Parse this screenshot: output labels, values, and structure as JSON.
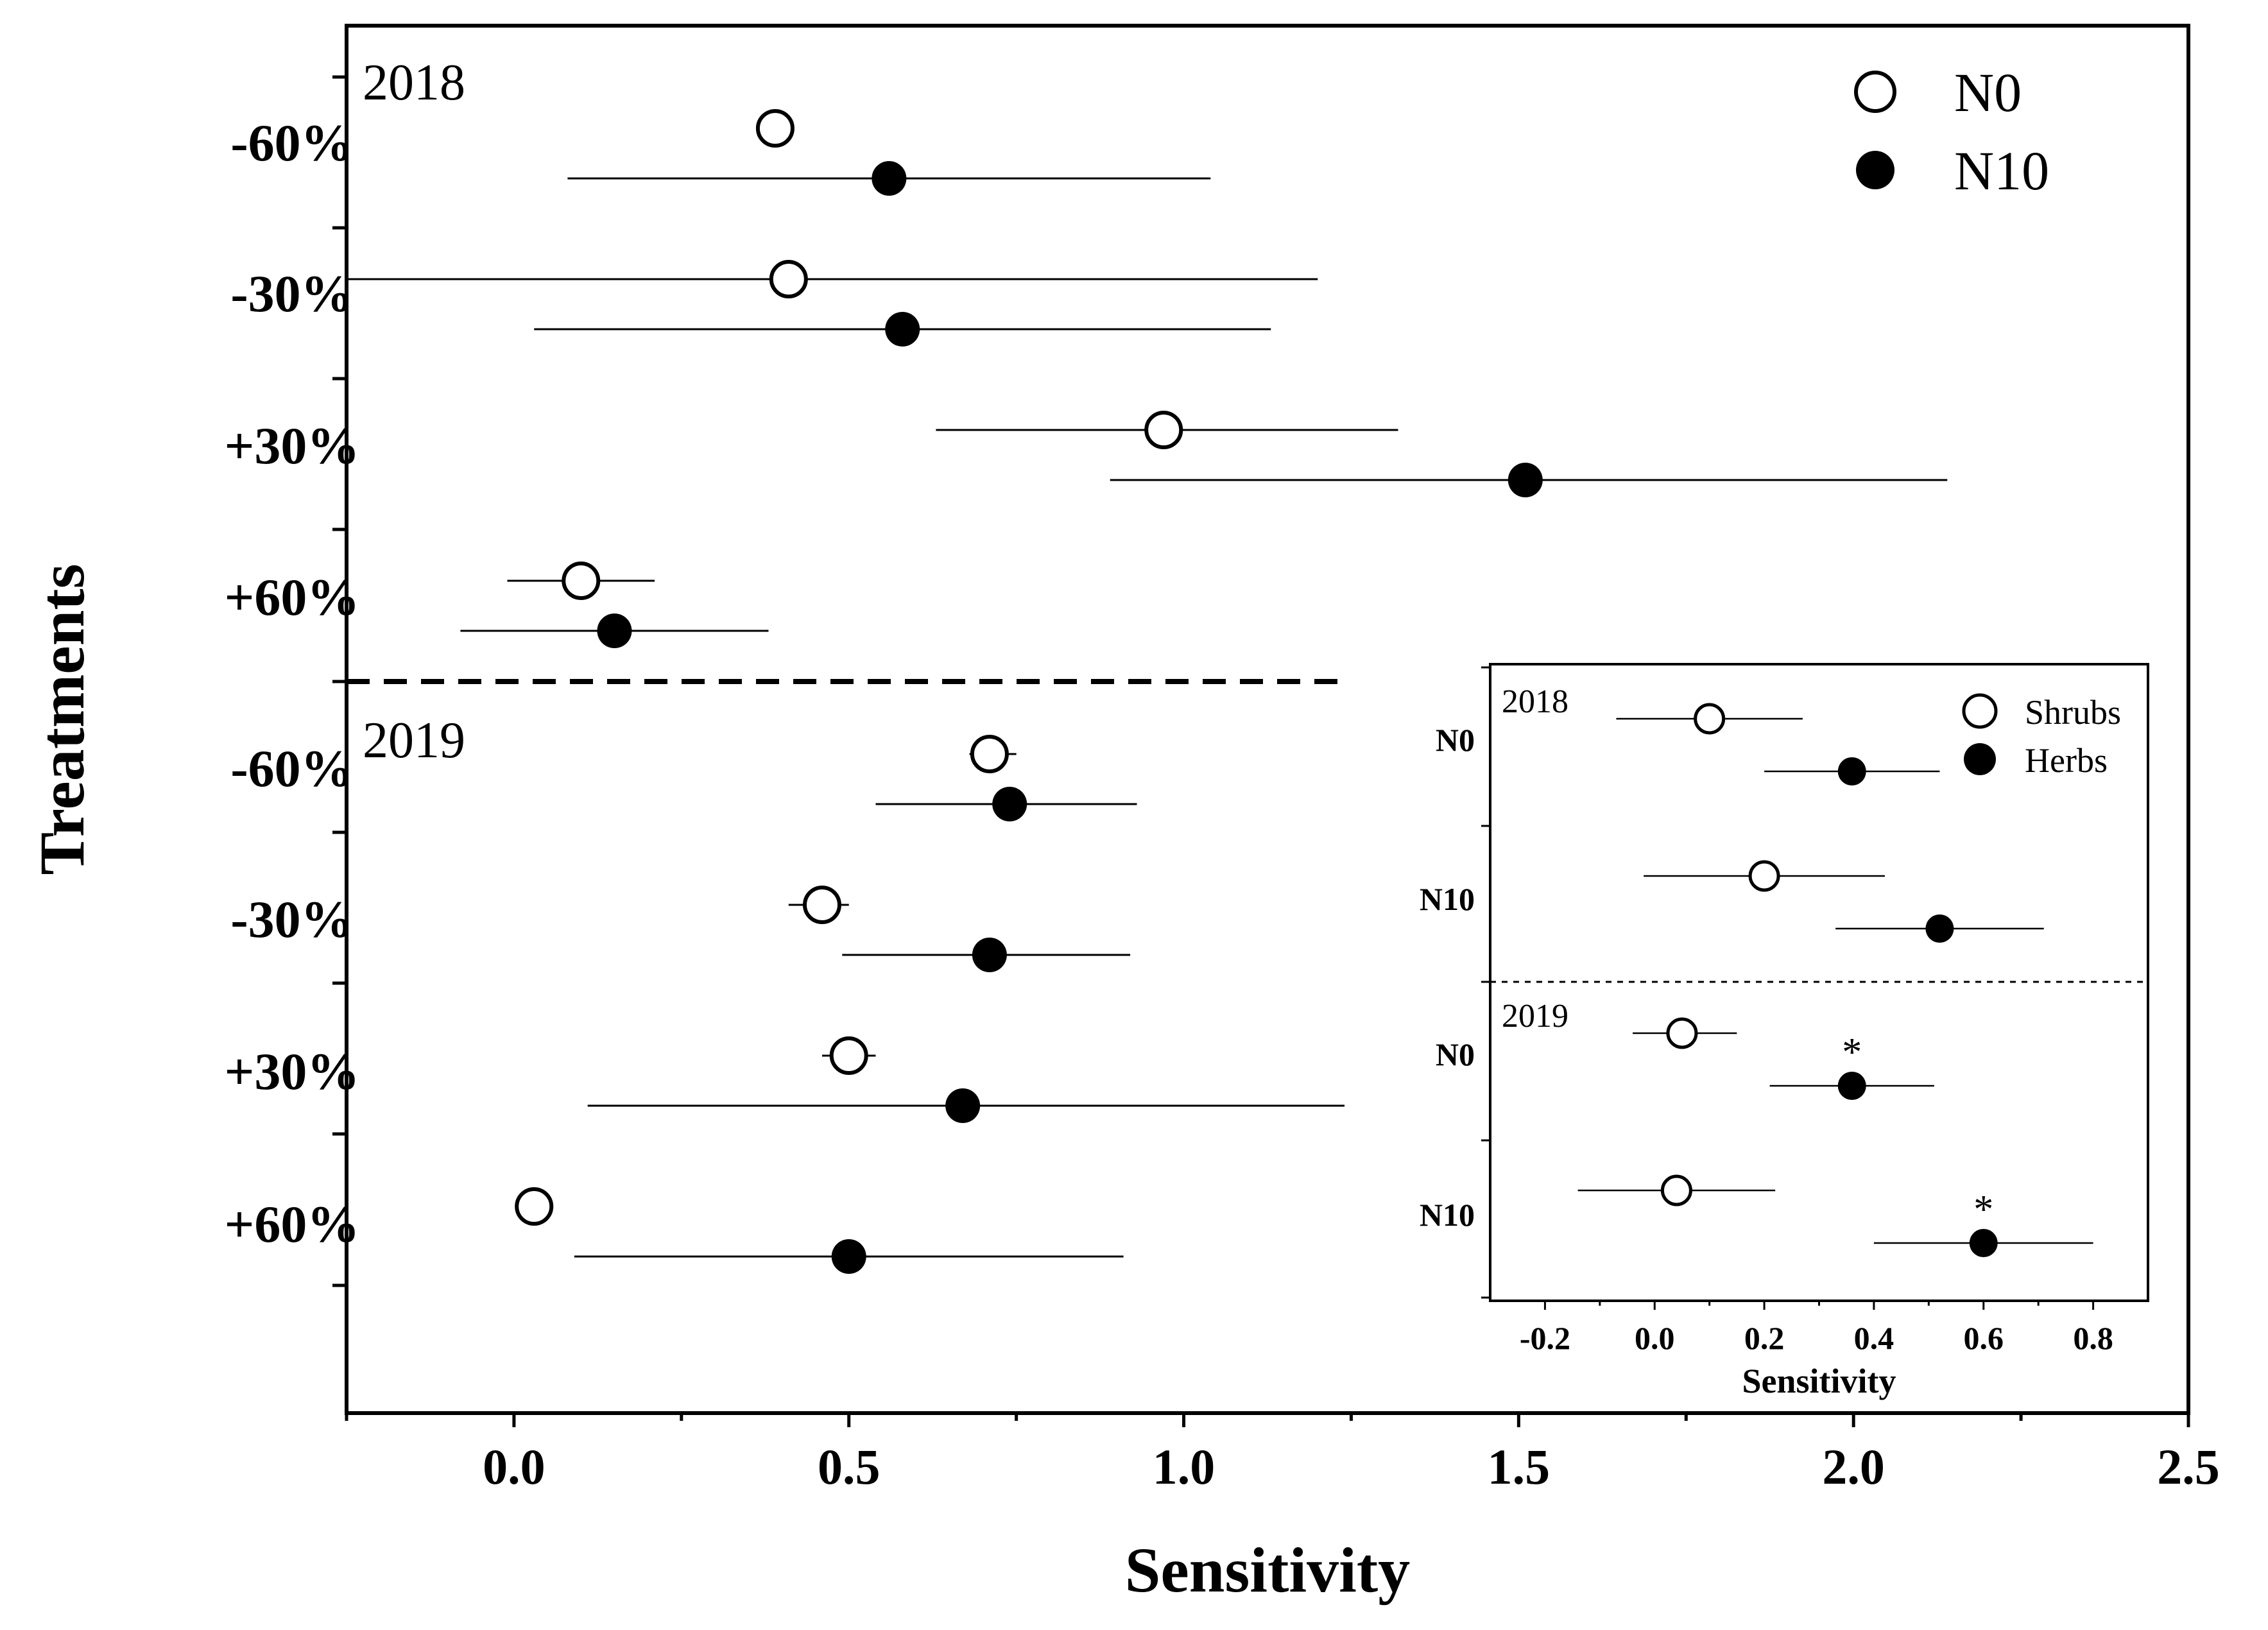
{
  "chart_data": [
    {
      "type": "scatter",
      "xlabel": "Sensitivity",
      "ylabel": "Treatments",
      "xlim": [
        -0.25,
        2.5
      ],
      "xticks": [
        "0.0",
        "0.5",
        "1.0",
        "1.5",
        "2.0",
        "2.5"
      ],
      "xtick_values": [
        0.0,
        0.5,
        1.0,
        1.5,
        2.0,
        2.5
      ],
      "legend_position": "top-right",
      "groups": [
        {
          "year": "2018",
          "treatments": [
            "-60%",
            "-30%",
            "+30%",
            "+60%"
          ]
        },
        {
          "year": "2019",
          "treatments": [
            "-60%",
            "-30%",
            "+30%",
            "+60%"
          ]
        }
      ],
      "series": [
        {
          "name": "N0",
          "marker": "open-circle",
          "points": [
            {
              "year": "2018",
              "treatment": "-60%",
              "x": 0.39,
              "err_low": null,
              "err_high": null
            },
            {
              "year": "2018",
              "treatment": "-30%",
              "x": 0.41,
              "err_low": -0.25,
              "err_high": 1.2
            },
            {
              "year": "2018",
              "treatment": "+30%",
              "x": 0.97,
              "err_low": 0.63,
              "err_high": 1.32
            },
            {
              "year": "2018",
              "treatment": "+60%",
              "x": 0.1,
              "err_low": -0.01,
              "err_high": 0.21
            },
            {
              "year": "2019",
              "treatment": "-60%",
              "x": 0.71,
              "err_low": 0.68,
              "err_high": 0.75
            },
            {
              "year": "2019",
              "treatment": "-30%",
              "x": 0.46,
              "err_low": 0.41,
              "err_high": 0.5
            },
            {
              "year": "2019",
              "treatment": "+30%",
              "x": 0.5,
              "err_low": 0.46,
              "err_high": 0.54
            },
            {
              "year": "2019",
              "treatment": "+60%",
              "x": 0.03,
              "err_low": null,
              "err_high": null
            }
          ]
        },
        {
          "name": "N10",
          "marker": "filled-circle",
          "points": [
            {
              "year": "2018",
              "treatment": "-60%",
              "x": 0.56,
              "err_low": 0.08,
              "err_high": 1.04
            },
            {
              "year": "2018",
              "treatment": "-30%",
              "x": 0.58,
              "err_low": 0.03,
              "err_high": 1.13
            },
            {
              "year": "2018",
              "treatment": "+30%",
              "x": 1.51,
              "err_low": 0.89,
              "err_high": 2.14
            },
            {
              "year": "2018",
              "treatment": "+60%",
              "x": 0.15,
              "err_low": -0.08,
              "err_high": 0.38
            },
            {
              "year": "2019",
              "treatment": "-60%",
              "x": 0.74,
              "err_low": 0.54,
              "err_high": 0.93
            },
            {
              "year": "2019",
              "treatment": "-30%",
              "x": 0.71,
              "err_low": 0.49,
              "err_high": 0.92
            },
            {
              "year": "2019",
              "treatment": "+30%",
              "x": 0.67,
              "err_low": 0.11,
              "err_high": 1.24
            },
            {
              "year": "2019",
              "treatment": "+60%",
              "x": 0.5,
              "err_low": 0.09,
              "err_high": 0.91
            }
          ]
        }
      ]
    },
    {
      "type": "scatter",
      "inset": true,
      "xlabel": "Sensitivity",
      "xlim": [
        -0.3,
        0.9
      ],
      "xticks": [
        "-0.2",
        "0.0",
        "0.2",
        "0.4",
        "0.6",
        "0.8"
      ],
      "xtick_values": [
        -0.2,
        0.0,
        0.2,
        0.4,
        0.6,
        0.8
      ],
      "legend_position": "top-right",
      "groups": [
        {
          "year": "2018",
          "treatments": [
            "N0",
            "N10"
          ]
        },
        {
          "year": "2019",
          "treatments": [
            "N0",
            "N10"
          ]
        }
      ],
      "series": [
        {
          "name": "Shrubs",
          "marker": "open-circle",
          "points": [
            {
              "year": "2018",
              "treatment": "N0",
              "x": 0.1,
              "err_low": -0.07,
              "err_high": 0.27,
              "sig": ""
            },
            {
              "year": "2018",
              "treatment": "N10",
              "x": 0.2,
              "err_low": -0.02,
              "err_high": 0.42,
              "sig": ""
            },
            {
              "year": "2019",
              "treatment": "N0",
              "x": 0.05,
              "err_low": -0.04,
              "err_high": 0.15,
              "sig": ""
            },
            {
              "year": "2019",
              "treatment": "N10",
              "x": 0.04,
              "err_low": -0.14,
              "err_high": 0.22,
              "sig": ""
            }
          ]
        },
        {
          "name": "Herbs",
          "marker": "filled-circle",
          "points": [
            {
              "year": "2018",
              "treatment": "N0",
              "x": 0.36,
              "err_low": 0.2,
              "err_high": 0.52,
              "sig": ""
            },
            {
              "year": "2018",
              "treatment": "N10",
              "x": 0.52,
              "err_low": 0.33,
              "err_high": 0.71,
              "sig": ""
            },
            {
              "year": "2019",
              "treatment": "N0",
              "x": 0.36,
              "err_low": 0.21,
              "err_high": 0.51,
              "sig": "*"
            },
            {
              "year": "2019",
              "treatment": "N10",
              "x": 0.6,
              "err_low": 0.4,
              "err_high": 0.8,
              "sig": "*"
            }
          ]
        }
      ]
    }
  ]
}
